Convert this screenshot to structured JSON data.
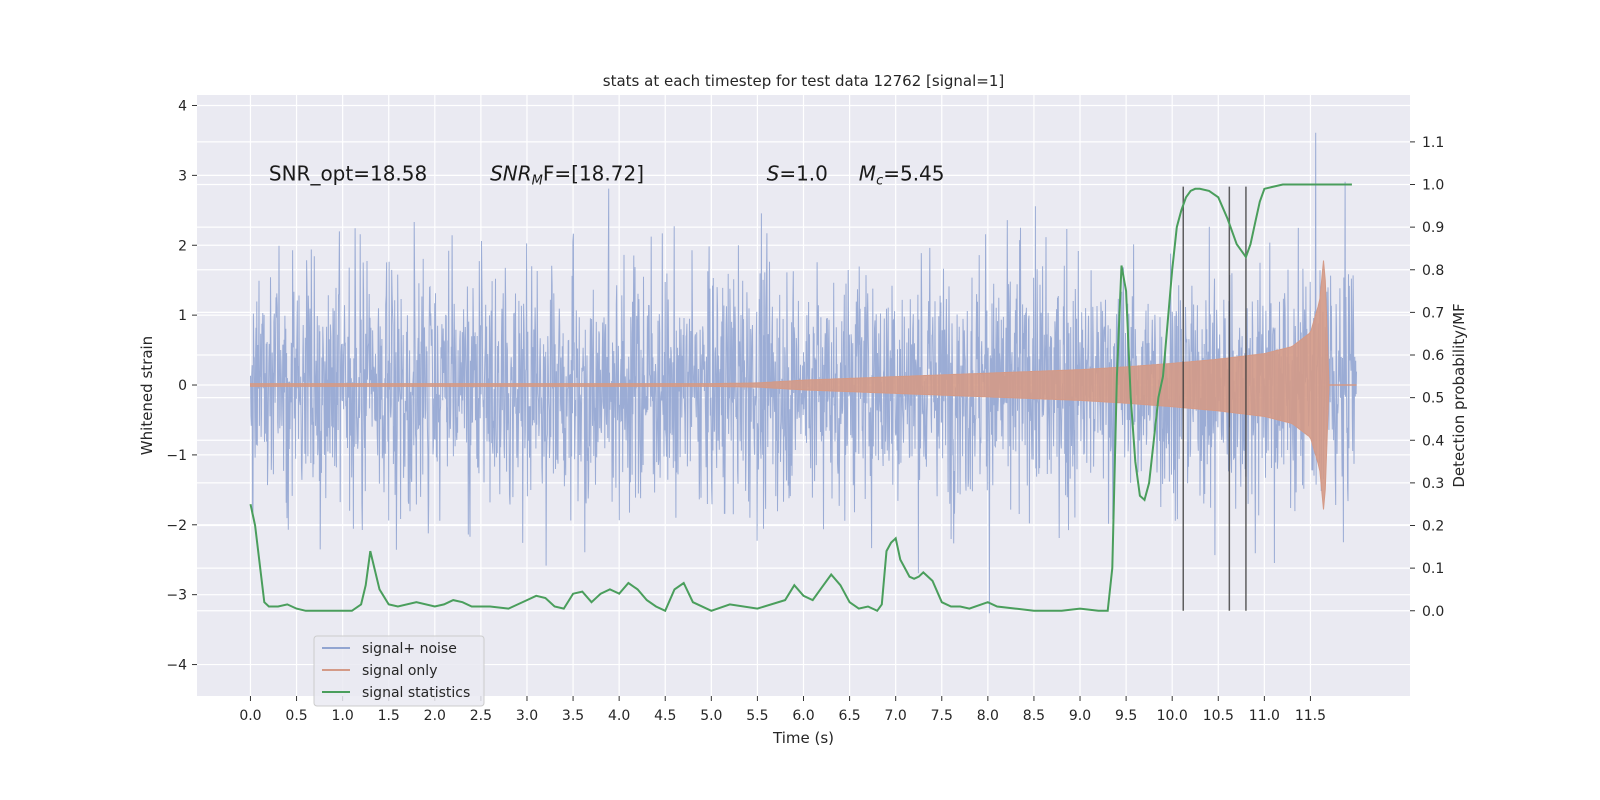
{
  "chart_data": {
    "type": "line",
    "title": "stats at each timestep for test data 12762 [signal=1]",
    "xlabel": "Time (s)",
    "ylabel": "Whitened strain",
    "y2label": "Detection probability/MF",
    "xlim": [
      -0.58,
      12.58
    ],
    "ylim": [
      -4.45,
      4.15
    ],
    "y2lim": [
      -0.2,
      1.21
    ],
    "xticks": [
      "0.0",
      "0.5",
      "1.0",
      "1.5",
      "2.0",
      "2.5",
      "3.0",
      "3.5",
      "4.0",
      "4.5",
      "5.0",
      "5.5",
      "6.0",
      "6.5",
      "7.0",
      "7.5",
      "8.0",
      "8.5",
      "9.0",
      "9.5",
      "10.0",
      "10.5",
      "11.0",
      "11.5"
    ],
    "yticks": [
      "4",
      "3",
      "2",
      "1",
      "0",
      "−1",
      "−2",
      "−3",
      "−4"
    ],
    "y2ticks": [
      "1.1",
      "1.0",
      "0.9",
      "0.8",
      "0.7",
      "0.6",
      "0.5",
      "0.4",
      "0.3",
      "0.2",
      "0.1",
      "0.0"
    ],
    "grid": true,
    "legend_position": "lower-left",
    "annotations": {
      "snr_opt": "SNR_opt=18.58",
      "snr_mf_symbol": "SNR",
      "snr_mf_sub": "M",
      "snr_mf_rest": "F=[18.72]",
      "s_symbol": "S",
      "s_rest": "=1.0",
      "mc_symbol": "M",
      "mc_sub": "c",
      "mc_rest": "=5.45"
    },
    "series": [
      {
        "name": "signal+ noise",
        "color": "#92a5d1",
        "description_values": "noise band approx ±2.3 whitened strain, peaks to ±4",
        "x_range": [
          0.0,
          12.0
        ],
        "approx_envelope": 2.3
      },
      {
        "name": "signal only",
        "color": "#d49a87",
        "x": [
          0.0,
          1.0,
          2.0,
          3.0,
          4.0,
          5.0,
          5.5,
          6.0,
          7.0,
          8.0,
          9.0,
          9.5,
          10.0,
          10.5,
          11.0,
          11.3,
          11.5,
          11.6,
          11.65,
          11.7
        ],
        "amplitude": [
          0.02,
          0.02,
          0.02,
          0.02,
          0.02,
          0.02,
          0.03,
          0.07,
          0.12,
          0.17,
          0.22,
          0.26,
          0.31,
          0.37,
          0.45,
          0.55,
          0.75,
          1.2,
          1.9,
          0.05
        ]
      },
      {
        "name": "signal statistics",
        "color": "#4a9e5c",
        "x": [
          0.0,
          0.05,
          0.1,
          0.15,
          0.2,
          0.3,
          0.4,
          0.5,
          0.6,
          0.8,
          1.0,
          1.1,
          1.2,
          1.25,
          1.3,
          1.4,
          1.5,
          1.6,
          1.8,
          2.0,
          2.1,
          2.2,
          2.3,
          2.4,
          2.6,
          2.8,
          3.0,
          3.1,
          3.2,
          3.3,
          3.4,
          3.5,
          3.6,
          3.7,
          3.8,
          3.9,
          4.0,
          4.1,
          4.2,
          4.3,
          4.4,
          4.5,
          4.6,
          4.7,
          4.8,
          5.0,
          5.2,
          5.5,
          5.8,
          5.9,
          6.0,
          6.1,
          6.2,
          6.3,
          6.4,
          6.5,
          6.6,
          6.7,
          6.8,
          6.85,
          6.9,
          6.95,
          7.0,
          7.05,
          7.1,
          7.15,
          7.2,
          7.25,
          7.3,
          7.4,
          7.5,
          7.6,
          7.7,
          7.8,
          8.0,
          8.1,
          8.3,
          8.5,
          8.8,
          9.0,
          9.2,
          9.3,
          9.35,
          9.4,
          9.45,
          9.5,
          9.55,
          9.6,
          9.65,
          9.7,
          9.75,
          9.8,
          9.85,
          9.9,
          10.0,
          10.05,
          10.1,
          10.15,
          10.2,
          10.25,
          10.3,
          10.4,
          10.5,
          10.6,
          10.7,
          10.8,
          10.85,
          10.9,
          10.95,
          11.0,
          11.1,
          11.2,
          11.4,
          11.6,
          11.8,
          11.95
        ],
        "values": [
          0.25,
          0.2,
          0.11,
          0.02,
          0.01,
          0.01,
          0.015,
          0.005,
          0.0,
          0.0,
          0.0,
          0.0,
          0.015,
          0.06,
          0.14,
          0.05,
          0.015,
          0.01,
          0.02,
          0.01,
          0.015,
          0.025,
          0.02,
          0.01,
          0.01,
          0.005,
          0.025,
          0.035,
          0.03,
          0.01,
          0.005,
          0.04,
          0.045,
          0.02,
          0.04,
          0.05,
          0.04,
          0.065,
          0.05,
          0.025,
          0.01,
          0.0,
          0.05,
          0.065,
          0.02,
          0.0,
          0.015,
          0.005,
          0.025,
          0.06,
          0.035,
          0.025,
          0.055,
          0.085,
          0.06,
          0.02,
          0.005,
          0.01,
          0.0,
          0.015,
          0.14,
          0.16,
          0.17,
          0.12,
          0.1,
          0.08,
          0.075,
          0.08,
          0.09,
          0.07,
          0.02,
          0.01,
          0.01,
          0.005,
          0.02,
          0.01,
          0.005,
          0.0,
          0.0,
          0.005,
          0.0,
          0.0,
          0.1,
          0.55,
          0.81,
          0.75,
          0.5,
          0.35,
          0.27,
          0.26,
          0.3,
          0.4,
          0.5,
          0.55,
          0.8,
          0.9,
          0.94,
          0.97,
          0.985,
          0.99,
          0.99,
          0.985,
          0.97,
          0.92,
          0.86,
          0.83,
          0.86,
          0.91,
          0.96,
          0.99,
          0.995,
          1.0,
          1.0,
          1.0,
          1.0,
          1.0
        ]
      }
    ],
    "vertical_markers_x": [
      10.12,
      10.62,
      10.8
    ]
  }
}
